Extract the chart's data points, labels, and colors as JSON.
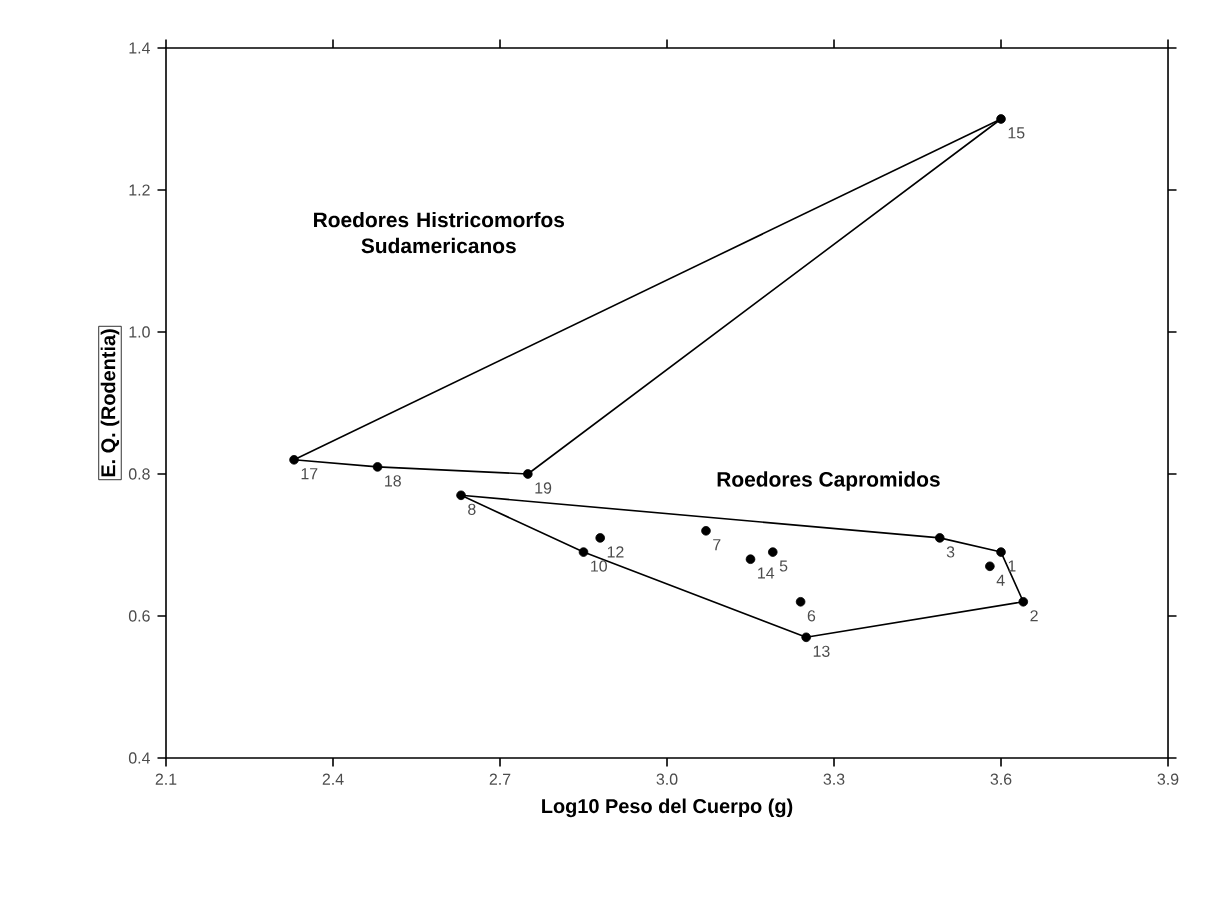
{
  "chart_data": {
    "type": "line",
    "xlabel": "Log10 Peso del Cuerpo (g)",
    "ylabel": "E. Q. (Rodentia)",
    "xlim": [
      2.1,
      3.9
    ],
    "ylim": [
      0.4,
      1.4
    ],
    "xticks": [
      2.1,
      2.4,
      2.7,
      {
        "value": 3.0,
        "label": "3.0"
      },
      3.3,
      3.6,
      3.9
    ],
    "yticks": [
      0.4,
      0.6,
      0.8,
      {
        "value": 1.0,
        "label": "1.0"
      },
      1.2,
      1.4
    ],
    "grid": false,
    "series": [
      {
        "color": "#000000",
        "x": [
          2.33,
          3.6
        ],
        "values": [
          0.82,
          1.3
        ]
      },
      {
        "color": "#000000",
        "x": [
          2.33,
          2.48,
          2.75,
          3.6
        ],
        "values": [
          0.82,
          0.81,
          0.8,
          1.3
        ]
      },
      {
        "color": "#000000",
        "x": [
          2.63,
          3.49,
          3.6,
          3.64
        ],
        "values": [
          0.77,
          0.71,
          0.69,
          0.62
        ]
      },
      {
        "color": "#000000",
        "x": [
          2.63,
          2.85,
          3.25,
          3.64
        ],
        "values": [
          0.77,
          0.69,
          0.57,
          0.62
        ]
      },
      {
        "type": "scatter",
        "color": "#000000",
        "x": [
          3.6,
          3.64,
          3.49,
          3.58,
          3.19,
          3.24,
          3.07,
          2.63,
          2.85,
          2.88,
          3.25,
          3.15,
          3.6,
          2.48,
          2.33,
          2.75
        ],
        "values": [
          0.69,
          0.62,
          0.71,
          0.67,
          0.69,
          0.62,
          0.72,
          0.77,
          0.69,
          0.71,
          0.57,
          0.68,
          1.3,
          0.81,
          0.82,
          0.8
        ]
      }
    ],
    "annotations": [
      "Roedores Histricomorfos Sudamericanos",
      "Roedores Capromidos",
      {
        "text": "1",
        "x": 3.6,
        "y": 0.69
      },
      {
        "text": "2",
        "x": 3.64,
        "y": 0.62
      },
      {
        "text": "3",
        "x": 3.49,
        "y": 0.71
      },
      {
        "text": "4",
        "x": 3.58,
        "y": 0.67
      },
      {
        "text": "5",
        "x": 3.19,
        "y": 0.69
      },
      {
        "text": "6",
        "x": 3.24,
        "y": 0.62
      },
      {
        "text": "7",
        "x": 3.07,
        "y": 0.72
      },
      {
        "text": "8",
        "x": 2.63,
        "y": 0.77
      },
      {
        "text": "10",
        "x": 2.85,
        "y": 0.69
      },
      {
        "text": "12",
        "x": 2.88,
        "y": 0.71
      },
      {
        "text": "13",
        "x": 3.25,
        "y": 0.57
      },
      {
        "text": "14",
        "x": 3.15,
        "y": 0.68
      },
      {
        "text": "15",
        "x": 3.6,
        "y": 1.3
      },
      {
        "text": "18",
        "x": 2.48,
        "y": 0.81
      },
      {
        "text": "17",
        "x": 2.33,
        "y": 0.82
      },
      {
        "text": "19",
        "x": 2.75,
        "y": 0.8
      }
    ]
  }
}
